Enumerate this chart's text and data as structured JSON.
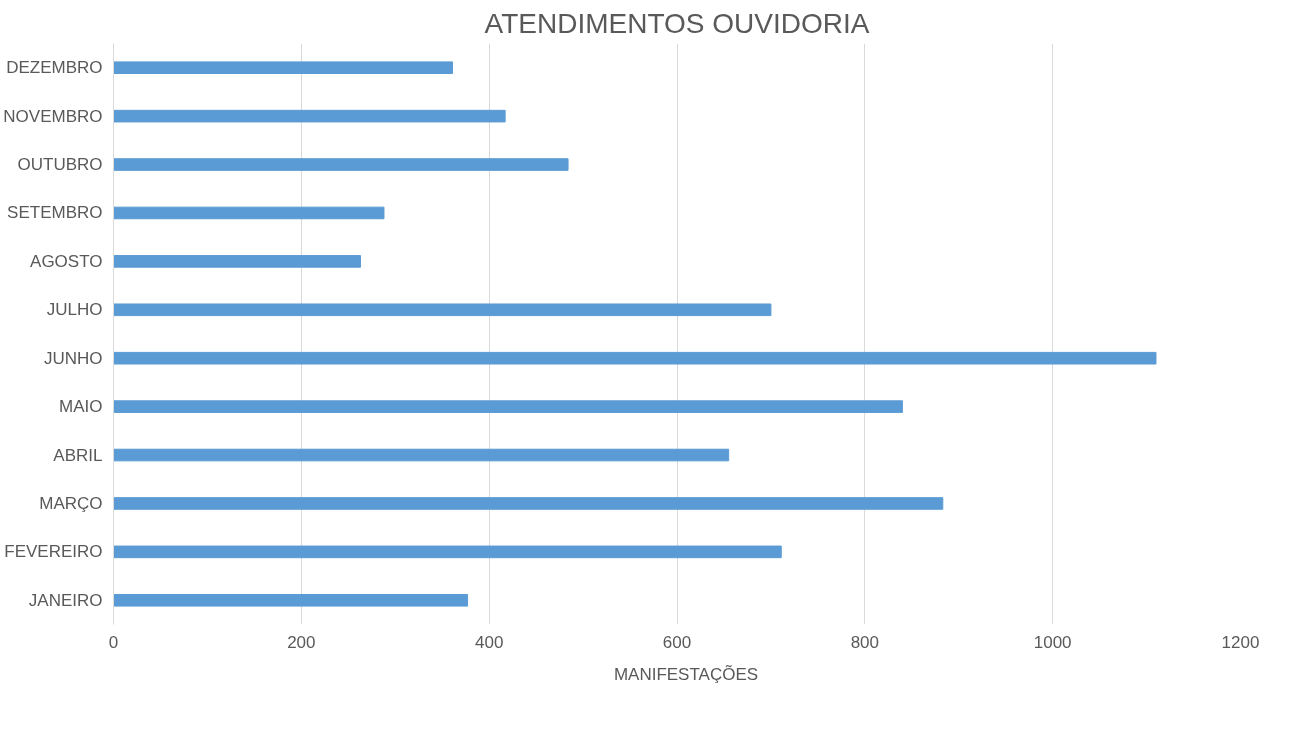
{
  "chart_data": {
    "type": "bar",
    "orientation": "horizontal",
    "title": "ATENDIMENTOS OUVIDORIA",
    "categories": [
      "DEZEMBRO",
      "NOVEMBRO",
      "OUTUBRO",
      "SETEMBRO",
      "AGOSTO",
      "JULHO",
      "JUNHO",
      "MAIO",
      "ABRIL",
      "MARÇO",
      "FEVEREIRO",
      "JANEIRO"
    ],
    "series": [
      {
        "name": "MANIFESTAÇÕES",
        "color": "#5b9bd5",
        "values": [
          361,
          417,
          484,
          288,
          263,
          700,
          1110,
          840,
          655,
          883,
          711,
          377
        ]
      }
    ],
    "xlim": [
      0,
      1200
    ],
    "xticks": [
      0,
      200,
      400,
      600,
      800,
      1000,
      1200
    ],
    "grid": "x",
    "legend": "bottom"
  }
}
